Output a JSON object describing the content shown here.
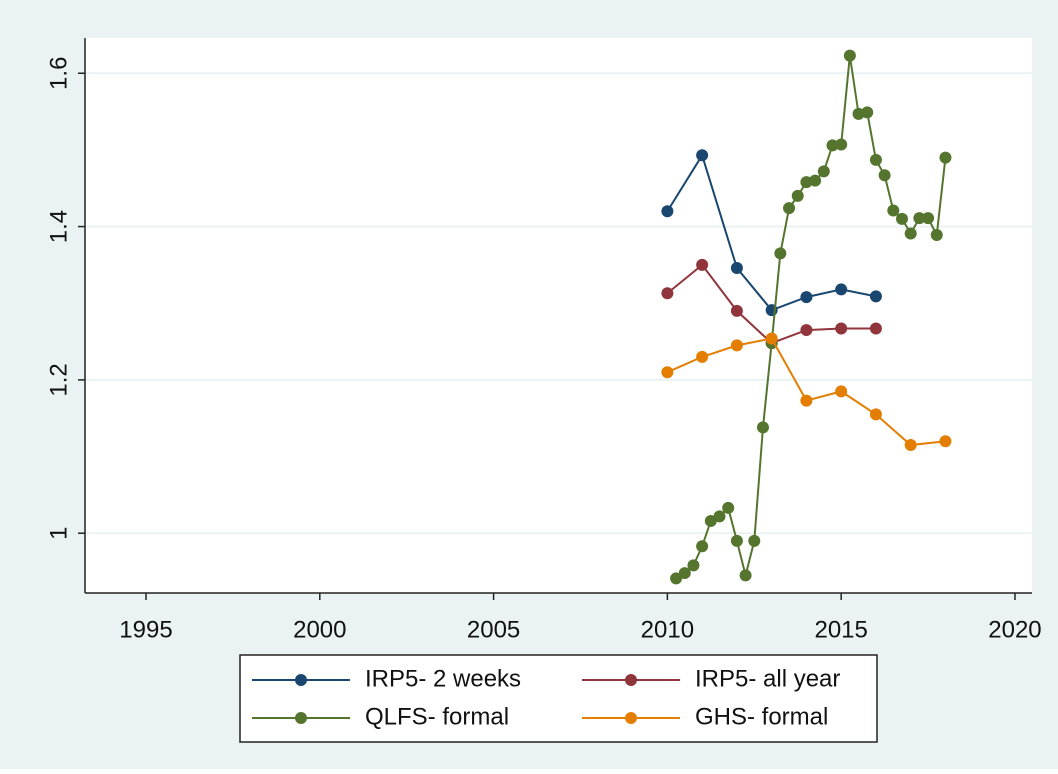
{
  "chart_data": {
    "type": "line",
    "xlim": [
      1993.245,
      2020.49
    ],
    "xticks": [
      1995,
      2000,
      2005,
      2010,
      2015,
      2020
    ],
    "ylim": [
      0.922,
      1.646
    ],
    "yticks": [
      1,
      1.2,
      1.4,
      1.6
    ],
    "grid": true,
    "legend": "bottom",
    "series": [
      {
        "name": "IRP5- 2 weeks",
        "color": "#1a476f",
        "x": [
          2010,
          2011,
          2012,
          2013,
          2014,
          2015,
          2016
        ],
        "values": [
          1.42,
          1.493,
          1.346,
          1.291,
          1.308,
          1.318,
          1.309
        ]
      },
      {
        "name": "IRP5- all year",
        "color": "#90353b",
        "x": [
          2010,
          2011,
          2012,
          2013,
          2014,
          2015,
          2016
        ],
        "values": [
          1.313,
          1.35,
          1.29,
          1.248,
          1.265,
          1.267,
          1.267
        ]
      },
      {
        "name": "QLFS- formal",
        "color": "#55752f",
        "x": [
          2010.25,
          2010.5,
          2010.75,
          2011,
          2011.25,
          2011.5,
          2011.75,
          2012,
          2012.25,
          2012.5,
          2012.75,
          2013,
          2013.25,
          2013.5,
          2013.75,
          2014,
          2014.25,
          2014.5,
          2014.75,
          2015,
          2015.25,
          2015.5,
          2015.75,
          2016,
          2016.25,
          2016.5,
          2016.75,
          2017,
          2017.25,
          2017.5,
          2017.75,
          2018
        ],
        "values": [
          0.941,
          0.948,
          0.958,
          0.983,
          1.016,
          1.022,
          1.033,
          0.99,
          0.945,
          0.99,
          1.138,
          1.248,
          1.365,
          1.424,
          1.44,
          1.458,
          1.46,
          1.472,
          1.506,
          1.507,
          1.623,
          1.547,
          1.549,
          1.487,
          1.467,
          1.421,
          1.41,
          1.391,
          1.411,
          1.411,
          1.389,
          1.49
        ]
      },
      {
        "name": "GHS- formal",
        "color": "#e37e00",
        "x": [
          2010,
          2011,
          2012,
          2013,
          2014,
          2015,
          2016,
          2017,
          2018
        ],
        "values": [
          1.21,
          1.23,
          1.245,
          1.254,
          1.173,
          1.185,
          1.155,
          1.115,
          1.12
        ]
      }
    ]
  }
}
